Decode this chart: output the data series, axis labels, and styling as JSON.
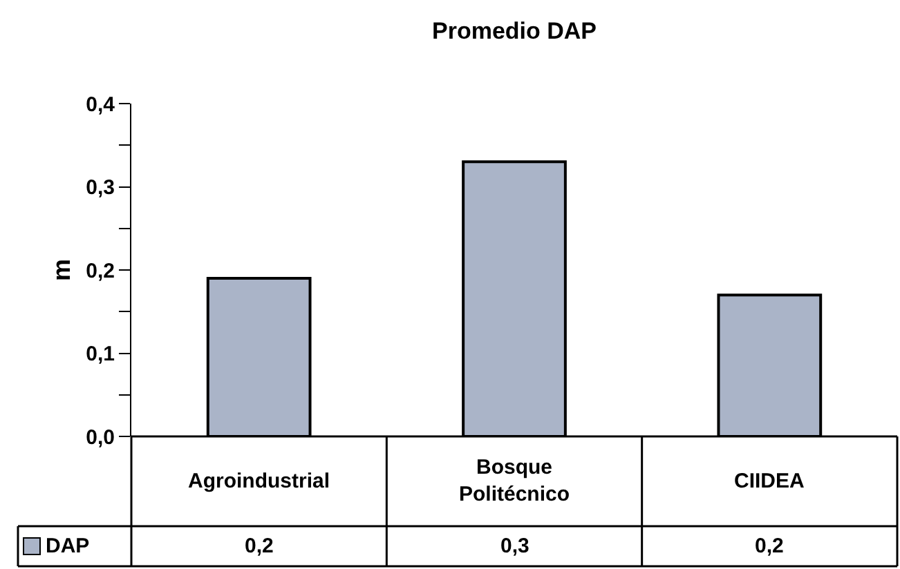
{
  "chart_data": {
    "type": "bar",
    "title": "Promedio DAP",
    "ylabel": "m",
    "categories": [
      "Agroindustrial",
      "Bosque\nPolitécnico",
      "CIIDEA"
    ],
    "series": [
      {
        "name": "DAP",
        "color": "#aab4c8",
        "values": [
          0.19,
          0.33,
          0.17
        ],
        "value_labels": [
          "0,2",
          "0,3",
          "0,2"
        ]
      }
    ],
    "ylim": [
      0,
      0.4
    ],
    "yticks": [
      {
        "value": 0,
        "label": "0,0"
      },
      {
        "value": 0.05,
        "label": null
      },
      {
        "value": 0.1,
        "label": "0,1"
      },
      {
        "value": 0.15,
        "label": null
      },
      {
        "value": 0.2,
        "label": "0,2"
      },
      {
        "value": 0.25,
        "label": null
      },
      {
        "value": 0.3,
        "label": "0,3"
      },
      {
        "value": 0.35,
        "label": null
      },
      {
        "value": 0.4,
        "label": "0,4"
      }
    ],
    "legend": "bottom left"
  }
}
